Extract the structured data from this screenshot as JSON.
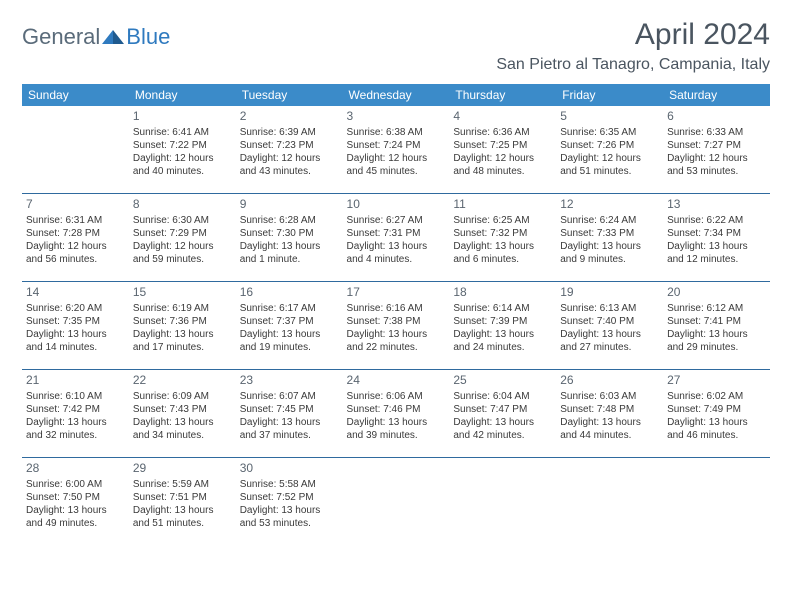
{
  "logo": {
    "general": "General",
    "blue": "Blue"
  },
  "title": "April 2024",
  "subtitle": "San Pietro al Tanagro, Campania, Italy",
  "daysOfWeek": [
    "Sunday",
    "Monday",
    "Tuesday",
    "Wednesday",
    "Thursday",
    "Friday",
    "Saturday"
  ],
  "colors": {
    "headerBg": "#3b8bc9",
    "headerText": "#ffffff",
    "rule": "#2f6a9e",
    "titleText": "#4a5560",
    "bodyText": "#3a3a3a",
    "logoGray": "#5a6b7a",
    "logoBlue": "#2f7abf"
  },
  "weeks": [
    [
      null,
      {
        "n": "1",
        "sr": "Sunrise: 6:41 AM",
        "ss": "Sunset: 7:22 PM",
        "d1": "Daylight: 12 hours",
        "d2": "and 40 minutes."
      },
      {
        "n": "2",
        "sr": "Sunrise: 6:39 AM",
        "ss": "Sunset: 7:23 PM",
        "d1": "Daylight: 12 hours",
        "d2": "and 43 minutes."
      },
      {
        "n": "3",
        "sr": "Sunrise: 6:38 AM",
        "ss": "Sunset: 7:24 PM",
        "d1": "Daylight: 12 hours",
        "d2": "and 45 minutes."
      },
      {
        "n": "4",
        "sr": "Sunrise: 6:36 AM",
        "ss": "Sunset: 7:25 PM",
        "d1": "Daylight: 12 hours",
        "d2": "and 48 minutes."
      },
      {
        "n": "5",
        "sr": "Sunrise: 6:35 AM",
        "ss": "Sunset: 7:26 PM",
        "d1": "Daylight: 12 hours",
        "d2": "and 51 minutes."
      },
      {
        "n": "6",
        "sr": "Sunrise: 6:33 AM",
        "ss": "Sunset: 7:27 PM",
        "d1": "Daylight: 12 hours",
        "d2": "and 53 minutes."
      }
    ],
    [
      {
        "n": "7",
        "sr": "Sunrise: 6:31 AM",
        "ss": "Sunset: 7:28 PM",
        "d1": "Daylight: 12 hours",
        "d2": "and 56 minutes."
      },
      {
        "n": "8",
        "sr": "Sunrise: 6:30 AM",
        "ss": "Sunset: 7:29 PM",
        "d1": "Daylight: 12 hours",
        "d2": "and 59 minutes."
      },
      {
        "n": "9",
        "sr": "Sunrise: 6:28 AM",
        "ss": "Sunset: 7:30 PM",
        "d1": "Daylight: 13 hours",
        "d2": "and 1 minute."
      },
      {
        "n": "10",
        "sr": "Sunrise: 6:27 AM",
        "ss": "Sunset: 7:31 PM",
        "d1": "Daylight: 13 hours",
        "d2": "and 4 minutes."
      },
      {
        "n": "11",
        "sr": "Sunrise: 6:25 AM",
        "ss": "Sunset: 7:32 PM",
        "d1": "Daylight: 13 hours",
        "d2": "and 6 minutes."
      },
      {
        "n": "12",
        "sr": "Sunrise: 6:24 AM",
        "ss": "Sunset: 7:33 PM",
        "d1": "Daylight: 13 hours",
        "d2": "and 9 minutes."
      },
      {
        "n": "13",
        "sr": "Sunrise: 6:22 AM",
        "ss": "Sunset: 7:34 PM",
        "d1": "Daylight: 13 hours",
        "d2": "and 12 minutes."
      }
    ],
    [
      {
        "n": "14",
        "sr": "Sunrise: 6:20 AM",
        "ss": "Sunset: 7:35 PM",
        "d1": "Daylight: 13 hours",
        "d2": "and 14 minutes."
      },
      {
        "n": "15",
        "sr": "Sunrise: 6:19 AM",
        "ss": "Sunset: 7:36 PM",
        "d1": "Daylight: 13 hours",
        "d2": "and 17 minutes."
      },
      {
        "n": "16",
        "sr": "Sunrise: 6:17 AM",
        "ss": "Sunset: 7:37 PM",
        "d1": "Daylight: 13 hours",
        "d2": "and 19 minutes."
      },
      {
        "n": "17",
        "sr": "Sunrise: 6:16 AM",
        "ss": "Sunset: 7:38 PM",
        "d1": "Daylight: 13 hours",
        "d2": "and 22 minutes."
      },
      {
        "n": "18",
        "sr": "Sunrise: 6:14 AM",
        "ss": "Sunset: 7:39 PM",
        "d1": "Daylight: 13 hours",
        "d2": "and 24 minutes."
      },
      {
        "n": "19",
        "sr": "Sunrise: 6:13 AM",
        "ss": "Sunset: 7:40 PM",
        "d1": "Daylight: 13 hours",
        "d2": "and 27 minutes."
      },
      {
        "n": "20",
        "sr": "Sunrise: 6:12 AM",
        "ss": "Sunset: 7:41 PM",
        "d1": "Daylight: 13 hours",
        "d2": "and 29 minutes."
      }
    ],
    [
      {
        "n": "21",
        "sr": "Sunrise: 6:10 AM",
        "ss": "Sunset: 7:42 PM",
        "d1": "Daylight: 13 hours",
        "d2": "and 32 minutes."
      },
      {
        "n": "22",
        "sr": "Sunrise: 6:09 AM",
        "ss": "Sunset: 7:43 PM",
        "d1": "Daylight: 13 hours",
        "d2": "and 34 minutes."
      },
      {
        "n": "23",
        "sr": "Sunrise: 6:07 AM",
        "ss": "Sunset: 7:45 PM",
        "d1": "Daylight: 13 hours",
        "d2": "and 37 minutes."
      },
      {
        "n": "24",
        "sr": "Sunrise: 6:06 AM",
        "ss": "Sunset: 7:46 PM",
        "d1": "Daylight: 13 hours",
        "d2": "and 39 minutes."
      },
      {
        "n": "25",
        "sr": "Sunrise: 6:04 AM",
        "ss": "Sunset: 7:47 PM",
        "d1": "Daylight: 13 hours",
        "d2": "and 42 minutes."
      },
      {
        "n": "26",
        "sr": "Sunrise: 6:03 AM",
        "ss": "Sunset: 7:48 PM",
        "d1": "Daylight: 13 hours",
        "d2": "and 44 minutes."
      },
      {
        "n": "27",
        "sr": "Sunrise: 6:02 AM",
        "ss": "Sunset: 7:49 PM",
        "d1": "Daylight: 13 hours",
        "d2": "and 46 minutes."
      }
    ],
    [
      {
        "n": "28",
        "sr": "Sunrise: 6:00 AM",
        "ss": "Sunset: 7:50 PM",
        "d1": "Daylight: 13 hours",
        "d2": "and 49 minutes."
      },
      {
        "n": "29",
        "sr": "Sunrise: 5:59 AM",
        "ss": "Sunset: 7:51 PM",
        "d1": "Daylight: 13 hours",
        "d2": "and 51 minutes."
      },
      {
        "n": "30",
        "sr": "Sunrise: 5:58 AM",
        "ss": "Sunset: 7:52 PM",
        "d1": "Daylight: 13 hours",
        "d2": "and 53 minutes."
      },
      null,
      null,
      null,
      null
    ]
  ]
}
